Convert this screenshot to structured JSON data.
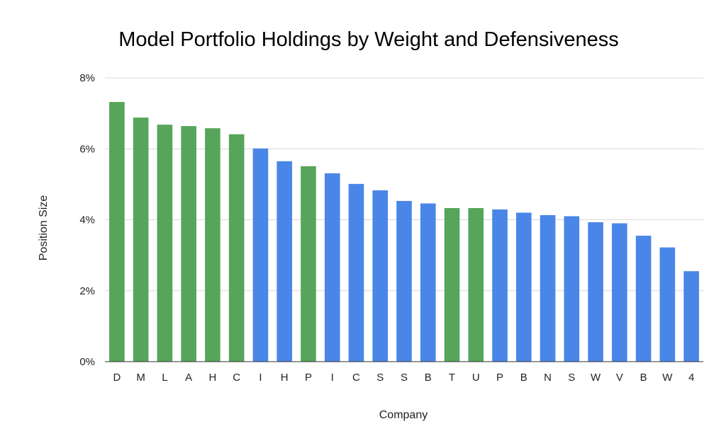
{
  "chart_data": {
    "type": "bar",
    "title": "Model Portfolio Holdings by Weight and Defensiveness",
    "xlabel": "Company",
    "ylabel": "Position Size",
    "ylim": [
      0,
      8
    ],
    "yticks": [
      0,
      2,
      4,
      6,
      8
    ],
    "ytick_labels": [
      "0%",
      "2%",
      "4%",
      "6%",
      "8%"
    ],
    "grid": true,
    "legend": "none",
    "categories": [
      "D",
      "M",
      "L",
      "A",
      "H",
      "C",
      "I",
      "H",
      "P",
      "I",
      "C",
      "S",
      "S",
      "B",
      "T",
      "U",
      "P",
      "B",
      "N",
      "S",
      "W",
      "V",
      "B",
      "W",
      "4"
    ],
    "values": [
      7.32,
      6.88,
      6.68,
      6.64,
      6.58,
      6.41,
      6.01,
      5.65,
      5.51,
      5.31,
      5.01,
      4.83,
      4.53,
      4.46,
      4.33,
      4.33,
      4.29,
      4.2,
      4.13,
      4.1,
      3.93,
      3.9,
      3.55,
      3.22,
      2.55
    ],
    "bar_colors": [
      "#57a55a",
      "#57a55a",
      "#57a55a",
      "#57a55a",
      "#57a55a",
      "#57a55a",
      "#4a86e8",
      "#4a86e8",
      "#57a55a",
      "#4a86e8",
      "#4a86e8",
      "#4a86e8",
      "#4a86e8",
      "#4a86e8",
      "#57a55a",
      "#57a55a",
      "#4a86e8",
      "#4a86e8",
      "#4a86e8",
      "#4a86e8",
      "#4a86e8",
      "#4a86e8",
      "#4a86e8",
      "#4a86e8",
      "#4a86e8"
    ]
  }
}
